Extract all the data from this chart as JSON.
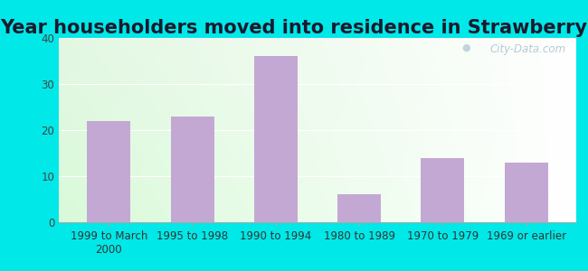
{
  "title": "Year householders moved into residence in Strawberry",
  "categories": [
    "1999 to March\n2000",
    "1995 to 1998",
    "1990 to 1994",
    "1980 to 1989",
    "1970 to 1979",
    "1969 or earlier"
  ],
  "values": [
    22,
    23,
    36,
    6,
    14,
    13
  ],
  "bar_color": "#c4a8d4",
  "ylim": [
    0,
    40
  ],
  "yticks": [
    0,
    10,
    20,
    30,
    40
  ],
  "background_outer": "#00e8e8",
  "title_fontsize": 15,
  "tick_fontsize": 8.5,
  "watermark": "City-Data.com",
  "bg_left_bottom": "#c8eec8",
  "bg_right_top": "#f8fef8",
  "grid_color": "#d8ecd8"
}
